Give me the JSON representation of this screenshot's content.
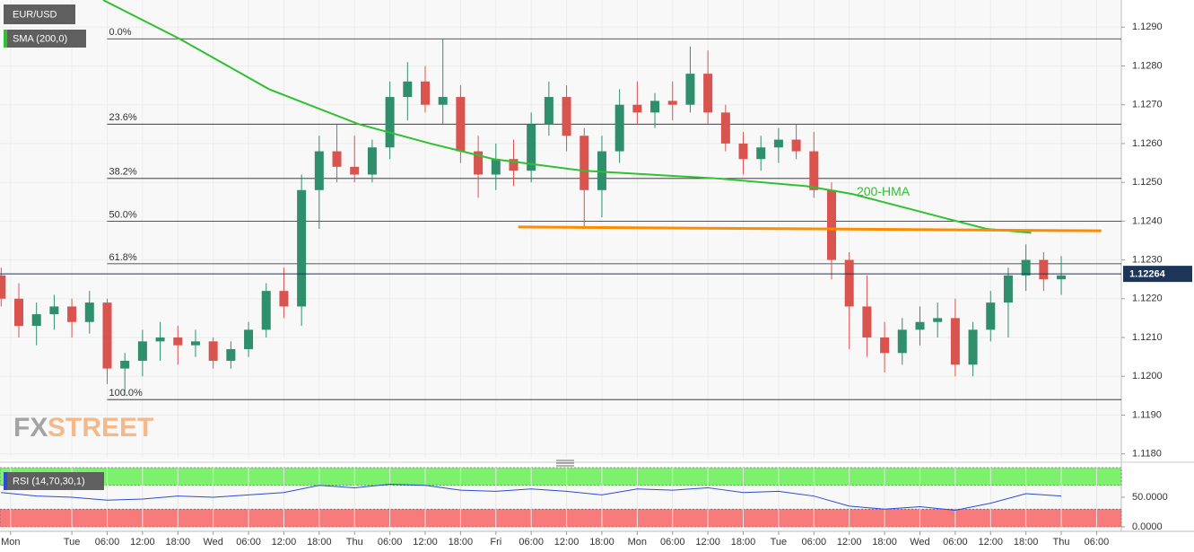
{
  "chart_data": [
    {
      "type": "candlestick",
      "symbol": "EUR/USD",
      "indicator": "SMA (200,0)",
      "watermark": [
        "FX",
        "STREET"
      ],
      "up_color": "#2f8f6d",
      "down_color": "#d9534f",
      "grid": true,
      "xlim": [
        -12.2,
        178.2
      ],
      "ylim": [
        1.1179,
        1.1297
      ],
      "yticks": [
        {
          "value": 1.129,
          "label": "1.1290"
        },
        {
          "value": 1.128,
          "label": "1.1280"
        },
        {
          "value": 1.127,
          "label": "1.1270"
        },
        {
          "value": 1.126,
          "label": "1.1260"
        },
        {
          "value": 1.125,
          "label": "1.1250"
        },
        {
          "value": 1.124,
          "label": "1.1240"
        },
        {
          "value": 1.123,
          "label": "1.1230"
        },
        {
          "value": 1.122,
          "label": "1.1220"
        },
        {
          "value": 1.121,
          "label": "1.1210"
        },
        {
          "value": 1.12,
          "label": "1.1200"
        },
        {
          "value": 1.119,
          "label": "1.1190"
        },
        {
          "value": 1.118,
          "label": "1.1180"
        }
      ],
      "x": [
        -12,
        -9,
        -6,
        -3,
        0,
        3,
        6,
        9,
        12,
        15,
        18,
        21,
        24,
        27,
        30,
        33,
        36,
        39,
        42,
        45,
        48,
        51,
        54,
        57,
        60,
        63,
        66,
        69,
        72,
        75,
        78,
        81,
        84,
        87,
        90,
        93,
        96,
        99,
        102,
        105,
        108,
        111,
        114,
        117,
        120,
        123,
        126,
        129,
        132,
        135,
        138,
        141,
        144,
        147,
        150,
        153,
        156,
        159,
        162,
        165,
        168
      ],
      "open": [
        1.1226,
        1.122,
        1.1213,
        1.1216,
        1.1218,
        1.1214,
        1.1219,
        1.1202,
        1.1204,
        1.1209,
        1.121,
        1.1208,
        1.1209,
        1.1204,
        1.1207,
        1.1212,
        1.1222,
        1.1218,
        1.1248,
        1.1258,
        1.1254,
        1.1252,
        1.1259,
        1.1272,
        1.1276,
        1.127,
        1.1272,
        1.1258,
        1.1252,
        1.1256,
        1.1253,
        1.1265,
        1.1272,
        1.1262,
        1.1248,
        1.1258,
        1.127,
        1.1268,
        1.1271,
        1.127,
        1.1278,
        1.1268,
        1.126,
        1.1256,
        1.1259,
        1.1261,
        1.1258,
        1.1248,
        1.123,
        1.1218,
        1.121,
        1.1206,
        1.1212,
        1.1214,
        1.1215,
        1.1203,
        1.1212,
        1.1219,
        1.1226,
        1.123,
        1.1225
      ],
      "high": [
        1.1228,
        1.1224,
        1.1219,
        1.1221,
        1.122,
        1.1222,
        1.122,
        1.1206,
        1.1212,
        1.1214,
        1.1213,
        1.1212,
        1.121,
        1.1209,
        1.1214,
        1.1224,
        1.1228,
        1.1252,
        1.1262,
        1.1265,
        1.1262,
        1.1261,
        1.1276,
        1.1281,
        1.128,
        1.1287,
        1.1275,
        1.1262,
        1.126,
        1.1261,
        1.1268,
        1.1276,
        1.1275,
        1.1264,
        1.1262,
        1.1274,
        1.1276,
        1.1273,
        1.1276,
        1.1285,
        1.1284,
        1.127,
        1.1263,
        1.1262,
        1.1264,
        1.1265,
        1.1263,
        1.125,
        1.1232,
        1.1226,
        1.1214,
        1.1215,
        1.1218,
        1.1219,
        1.122,
        1.1214,
        1.1222,
        1.1228,
        1.1234,
        1.1232,
        1.1231
      ],
      "low": [
        1.1218,
        1.121,
        1.1208,
        1.1212,
        1.121,
        1.1211,
        1.1198,
        1.1195,
        1.12,
        1.1204,
        1.1203,
        1.1205,
        1.1202,
        1.1202,
        1.1205,
        1.121,
        1.1215,
        1.1213,
        1.1238,
        1.125,
        1.125,
        1.125,
        1.1256,
        1.1266,
        1.1268,
        1.1265,
        1.1255,
        1.1246,
        1.1248,
        1.1249,
        1.125,
        1.1262,
        1.1258,
        1.1238,
        1.1241,
        1.1255,
        1.1265,
        1.1264,
        1.1266,
        1.1268,
        1.1265,
        1.1258,
        1.1252,
        1.1253,
        1.1255,
        1.1256,
        1.1246,
        1.1225,
        1.1207,
        1.1205,
        1.1201,
        1.1203,
        1.1208,
        1.121,
        1.12,
        1.12,
        1.1209,
        1.121,
        1.1222,
        1.1222,
        1.1221
      ],
      "close": [
        1.122,
        1.1213,
        1.1216,
        1.1218,
        1.1214,
        1.1219,
        1.1202,
        1.1204,
        1.1209,
        1.121,
        1.1208,
        1.1209,
        1.1204,
        1.1207,
        1.1212,
        1.1222,
        1.1218,
        1.1248,
        1.1258,
        1.1254,
        1.1252,
        1.1259,
        1.1272,
        1.1276,
        1.127,
        1.1272,
        1.1258,
        1.1252,
        1.1256,
        1.1253,
        1.1265,
        1.1272,
        1.1262,
        1.1248,
        1.1258,
        1.127,
        1.1268,
        1.1271,
        1.127,
        1.1278,
        1.1268,
        1.126,
        1.1256,
        1.1259,
        1.1261,
        1.1258,
        1.1248,
        1.123,
        1.1218,
        1.121,
        1.1206,
        1.1212,
        1.1214,
        1.1215,
        1.1203,
        1.1212,
        1.1219,
        1.1226,
        1.123,
        1.1225,
        1.1226
      ],
      "levels": [
        {
          "label": "0.0%",
          "value": 1.1287
        },
        {
          "label": "23.6%",
          "value": 1.1265
        },
        {
          "label": "38.2%",
          "value": 1.1251
        },
        {
          "label": "50.0%",
          "value": 1.124
        },
        {
          "label": "61.8%",
          "value": 1.1229
        },
        {
          "label": "100.0%",
          "value": 1.1194
        }
      ],
      "level_start": 6.0,
      "last_price": {
        "value": 1.12264,
        "label": "1.12264"
      },
      "lines": [
        {
          "label": "200-HMA",
          "color": "#2fc12f",
          "x": [
            5.3,
            18.3,
            33.5,
            48.7,
            60.9,
            71.6,
            86.8,
            109.6,
            124.9,
            132.5,
            140.1,
            147.7,
            155.3,
            162.9
          ],
          "y": [
            1.1297,
            1.1287,
            1.1274,
            1.1265,
            1.126,
            1.1256,
            1.1253,
            1.1251,
            1.1249,
            1.1247,
            1.1244,
            1.1241,
            1.1238,
            1.1237
          ]
        },
        {
          "color": "#ff8c00",
          "x": [
            75.8,
            174.8
          ],
          "y": [
            1.12385,
            1.12375
          ]
        }
      ]
    },
    {
      "type": "line",
      "label": "RSI (14,70,30,1)",
      "color": "#2a4bd7",
      "ylim": [
        0,
        100
      ],
      "yticks": [
        {
          "value": 50,
          "label": "50.0000"
        },
        {
          "value": 0,
          "label": "0.0000"
        }
      ],
      "bands": [
        {
          "from": 70,
          "to": 100,
          "color": "#7df06e"
        },
        {
          "from": 0,
          "to": 30,
          "color": "#f77b7b"
        }
      ],
      "xlim": [
        -12.2,
        178.2
      ],
      "xticks": [
        {
          "value": -10.4,
          "label": "Mon"
        },
        {
          "value": 0,
          "label": "Tue"
        },
        {
          "value": 6,
          "label": "06:00"
        },
        {
          "value": 12,
          "label": "12:00"
        },
        {
          "value": 18,
          "label": "18:00"
        },
        {
          "value": 24,
          "label": "Wed"
        },
        {
          "value": 30,
          "label": "06:00"
        },
        {
          "value": 36,
          "label": "12:00"
        },
        {
          "value": 42,
          "label": "18:00"
        },
        {
          "value": 48,
          "label": "Thu"
        },
        {
          "value": 54,
          "label": "06:00"
        },
        {
          "value": 60,
          "label": "12:00"
        },
        {
          "value": 66,
          "label": "18:00"
        },
        {
          "value": 72,
          "label": "Fri"
        },
        {
          "value": 78,
          "label": "06:00"
        },
        {
          "value": 84,
          "label": "12:00"
        },
        {
          "value": 90,
          "label": "18:00"
        },
        {
          "value": 96,
          "label": "Mon"
        },
        {
          "value": 102,
          "label": "06:00"
        },
        {
          "value": 108,
          "label": "12:00"
        },
        {
          "value": 114,
          "label": "18:00"
        },
        {
          "value": 120,
          "label": "Tue"
        },
        {
          "value": 126,
          "label": "06:00"
        },
        {
          "value": 132,
          "label": "12:00"
        },
        {
          "value": 138,
          "label": "18:00"
        },
        {
          "value": 144,
          "label": "Wed"
        },
        {
          "value": 150,
          "label": "06:00"
        },
        {
          "value": 156,
          "label": "12:00"
        },
        {
          "value": 162,
          "label": "18:00"
        },
        {
          "value": 168,
          "label": "Thu"
        },
        {
          "value": 174,
          "label": "06:00"
        }
      ],
      "x": [
        -12,
        -6,
        0,
        6,
        12,
        18,
        24,
        30,
        36,
        42,
        48,
        54,
        60,
        66,
        72,
        78,
        84,
        90,
        96,
        102,
        108,
        114,
        120,
        126,
        132,
        138,
        144,
        150,
        156,
        162,
        168
      ],
      "values": [
        58,
        52,
        50,
        45,
        47,
        52,
        50,
        54,
        58,
        70,
        66,
        72,
        70,
        62,
        60,
        64,
        60,
        54,
        64,
        62,
        66,
        58,
        60,
        52,
        35,
        30,
        34,
        28,
        40,
        56,
        52
      ]
    }
  ]
}
